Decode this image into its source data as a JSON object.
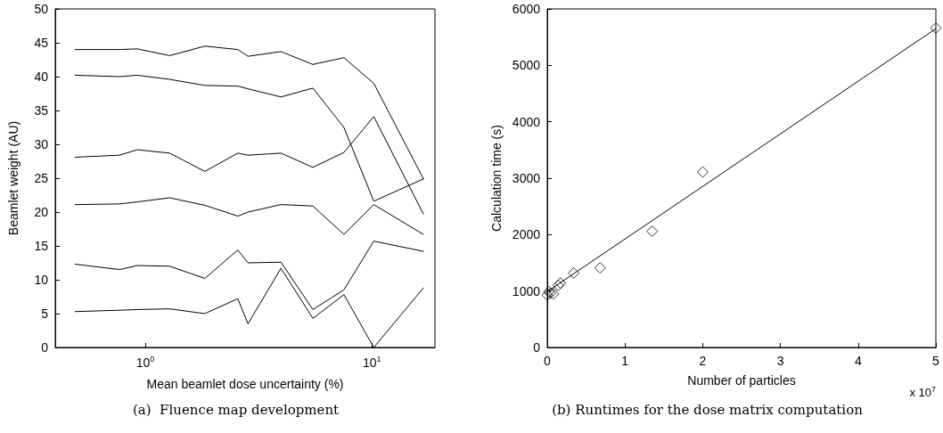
{
  "chart_data": [
    {
      "type": "line",
      "title": "(a)  Fluence map development",
      "xlabel": "Mean beamlet dose uncertainty (%)",
      "ylabel": "Beamlet weight (AU)",
      "log": "x",
      "grid": false,
      "marker": "none",
      "line_style": "solid",
      "x": [
        0.49,
        0.77,
        0.92,
        1.28,
        1.83,
        2.56,
        2.84,
        3.97,
        5.49,
        7.53,
        10.2,
        16.9
      ],
      "xlim": [
        0.4,
        19
      ],
      "xticks": [
        {
          "value": 1,
          "label": "10$^{0}$"
        },
        {
          "value": 10,
          "label": "10$^{1}$"
        }
      ],
      "ylim": [
        0,
        50
      ],
      "yticks": [
        0,
        5,
        10,
        15,
        20,
        25,
        30,
        35,
        40,
        45,
        50
      ],
      "series": [
        {
          "color": "#000000",
          "values": [
            44.0,
            44.0,
            44.1,
            43.1,
            44.5,
            44.0,
            43.0,
            43.7,
            41.8,
            42.8,
            39.0,
            24.9
          ]
        },
        {
          "color": "#000000",
          "values": [
            40.2,
            40.0,
            40.2,
            39.6,
            38.7,
            38.6,
            38.2,
            37.0,
            38.3,
            32.5,
            21.6,
            24.9
          ]
        },
        {
          "color": "#000000",
          "values": [
            28.1,
            28.4,
            29.2,
            28.7,
            26.0,
            28.7,
            28.4,
            28.7,
            26.6,
            28.8,
            34.1,
            19.7
          ]
        },
        {
          "color": "#000000",
          "values": [
            21.1,
            21.2,
            21.5,
            22.1,
            21.0,
            19.4,
            20.0,
            21.1,
            20.9,
            16.7,
            21.1,
            16.7
          ]
        },
        {
          "color": "#000000",
          "values": [
            12.3,
            11.5,
            12.1,
            12.0,
            10.2,
            14.4,
            12.5,
            12.6,
            5.6,
            8.5,
            15.7,
            14.2
          ]
        },
        {
          "color": "#000000",
          "values": [
            5.3,
            5.5,
            5.6,
            5.7,
            5.0,
            7.2,
            3.5,
            11.7,
            4.3,
            7.8,
            0.0,
            8.8
          ]
        }
      ]
    },
    {
      "type": "scatter",
      "title": "(b) Runtimes for the dose matrix computation",
      "xlabel": "Number of particles",
      "ylabel": "Calculation time (s)",
      "annotations": [
        "x 10$^{7}$"
      ],
      "grid": false,
      "xlim": [
        0,
        5
      ],
      "xticks": [
        0,
        1,
        2,
        3,
        4,
        5
      ],
      "ylim": [
        0,
        6000
      ],
      "yticks": [
        0,
        1000,
        2000,
        3000,
        4000,
        5000,
        6000
      ],
      "series": [
        {
          "marker": "diamond",
          "color": "#000000",
          "x": [
            0,
            0.02,
            0.04,
            0.08,
            0.14,
            0.17,
            0.34,
            0.68,
            1.35,
            2.0,
            5.0
          ],
          "values": [
            930,
            990,
            960,
            950,
            1100,
            1140,
            1320,
            1410,
            2060,
            3110,
            5660
          ]
        },
        {
          "type": "line",
          "marker": "none",
          "line_style": "solid",
          "color": "#000000",
          "x": [
            0,
            5
          ],
          "values": [
            990,
            5650
          ]
        }
      ]
    }
  ]
}
